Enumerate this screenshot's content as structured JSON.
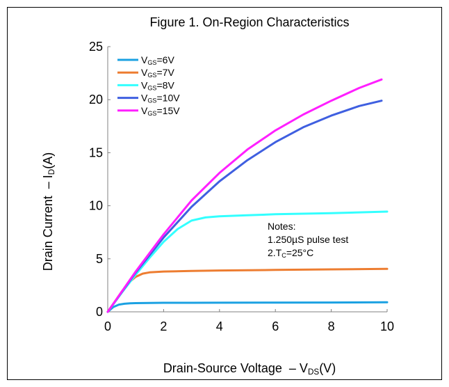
{
  "chart_data": {
    "type": "line",
    "title": "Figure 1. On-Region Characteristics",
    "xlabel": {
      "main": "Drain-Source Voltage  – V",
      "sub": "DS",
      "unit": "(V)"
    },
    "ylabel": {
      "main": "Drain Current  – I",
      "sub": "D",
      "unit": "(A)"
    },
    "xlim": [
      0,
      10
    ],
    "ylim": [
      0,
      25
    ],
    "xticks": [
      0,
      2,
      4,
      6,
      8,
      10
    ],
    "yticks": [
      0,
      5,
      10,
      15,
      20,
      25
    ],
    "xtick_labels": [
      "0",
      "2",
      "4",
      "6",
      "8",
      "10"
    ],
    "ytick_labels": [
      "0",
      "5",
      "10",
      "15",
      "20",
      "25"
    ],
    "grid": false,
    "legend_position": "top-left",
    "series": [
      {
        "name": "VGS=6V",
        "label": {
          "main": "V",
          "sub": "GS",
          "rest": "=6V"
        },
        "color": "#1ba1e2",
        "x": [
          0,
          0.2,
          0.4,
          0.6,
          0.8,
          1.0,
          1.5,
          2,
          3,
          4,
          6,
          8,
          10
        ],
        "y": [
          0,
          0.45,
          0.68,
          0.76,
          0.8,
          0.82,
          0.84,
          0.85,
          0.85,
          0.86,
          0.87,
          0.88,
          0.9
        ]
      },
      {
        "name": "VGS=7V",
        "label": {
          "main": "V",
          "sub": "GS",
          "rest": "=7V"
        },
        "color": "#ed7d31",
        "x": [
          0,
          0.25,
          0.5,
          0.75,
          1.0,
          1.25,
          1.5,
          2,
          3,
          4,
          6,
          8,
          10
        ],
        "y": [
          0,
          0.95,
          1.9,
          2.75,
          3.3,
          3.6,
          3.72,
          3.8,
          3.85,
          3.9,
          3.95,
          4.0,
          4.05
        ]
      },
      {
        "name": "VGS=8V",
        "label": {
          "main": "V",
          "sub": "GS",
          "rest": "=8V"
        },
        "color": "#33ffff",
        "x": [
          0,
          0.5,
          1.0,
          1.5,
          2.0,
          2.5,
          3.0,
          3.5,
          4.0,
          5.0,
          6.0,
          8.0,
          10.0
        ],
        "y": [
          0,
          1.8,
          3.5,
          5.1,
          6.6,
          7.8,
          8.6,
          8.9,
          9.0,
          9.1,
          9.2,
          9.3,
          9.45
        ]
      },
      {
        "name": "VGS=10V",
        "label": {
          "main": "V",
          "sub": "GS",
          "rest": "=10V"
        },
        "color": "#3f5fe0",
        "x": [
          0,
          1,
          2,
          3,
          4,
          5,
          6,
          7,
          8,
          9,
          9.8
        ],
        "y": [
          0,
          3.7,
          7.0,
          9.9,
          12.3,
          14.3,
          16.0,
          17.4,
          18.5,
          19.4,
          19.9
        ]
      },
      {
        "name": "VGS=15V",
        "label": {
          "main": "V",
          "sub": "GS",
          "rest": "=15V"
        },
        "color": "#ff1fff",
        "x": [
          0,
          1,
          2,
          3,
          4,
          5,
          6,
          7,
          8,
          9,
          9.8
        ],
        "y": [
          0,
          3.8,
          7.3,
          10.5,
          13.1,
          15.3,
          17.1,
          18.6,
          19.9,
          21.1,
          21.9
        ]
      }
    ],
    "annotations": {
      "notes_title": "Notes:",
      "note1": "1.250µS pulse test",
      "note2": {
        "main": "2.T",
        "sub": "C",
        "rest": "=25°C"
      }
    }
  }
}
